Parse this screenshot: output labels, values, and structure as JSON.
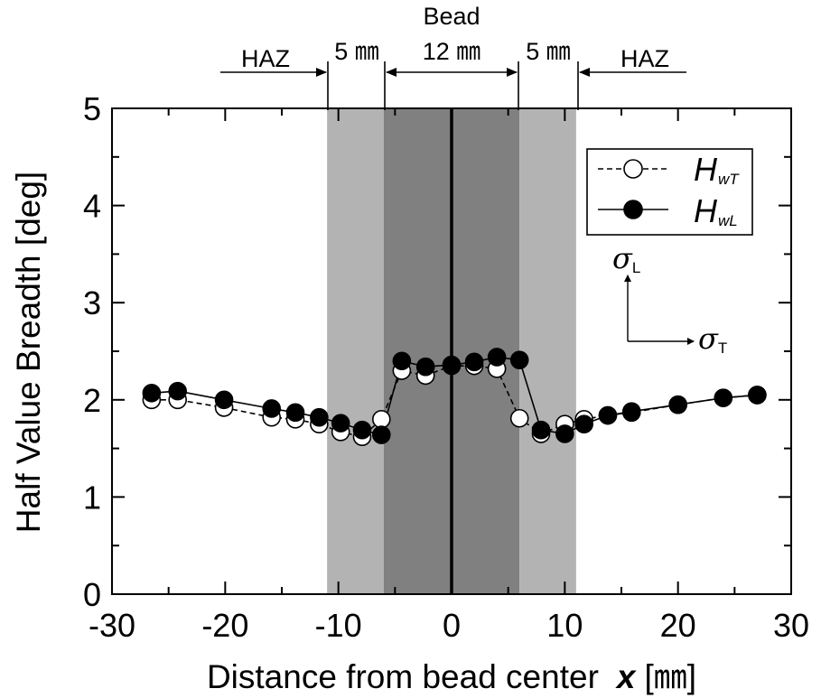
{
  "chart_data": {
    "type": "line",
    "xlabel_text": "Distance from bead center",
    "xlabel_var": "x",
    "xlabel_unit": "[㎜]",
    "ylabel": "Half Value Breadth [deg]",
    "xlim": [
      -30,
      30
    ],
    "ylim": [
      0,
      5
    ],
    "xticks": [
      -30,
      -20,
      -10,
      0,
      10,
      20,
      30
    ],
    "yticks": [
      0,
      1,
      2,
      3,
      4,
      5
    ],
    "grid": false,
    "legend_position": "top-right",
    "regions": [
      {
        "from": -11,
        "to": -6,
        "color": "#b3b3b3"
      },
      {
        "from": -6,
        "to": 6,
        "color": "#808080"
      },
      {
        "from": 6,
        "to": 11,
        "color": "#b3b3b3"
      }
    ],
    "center_line_x": 0,
    "top_labels": {
      "haz_left": "HAZ",
      "haz_right": "HAZ",
      "left_5mm": "5 ㎜",
      "right_5mm": "5 ㎜",
      "bead": "Bead",
      "bead_width": "12 ㎜"
    },
    "series": [
      {
        "name_main": "H",
        "name_sub": "wT",
        "marker": "open-circle",
        "linestyle": "dashed",
        "x": [
          -26.5,
          -24.2,
          -20.1,
          -15.9,
          -13.8,
          -11.7,
          -9.8,
          -7.9,
          -6.2,
          -4.4,
          -2.3,
          0.0,
          2.0,
          4.0,
          6.0,
          7.9,
          10.0,
          11.7,
          13.8,
          15.9,
          20.0,
          24.0,
          27.0
        ],
        "values": [
          2.0,
          2.0,
          1.92,
          1.82,
          1.8,
          1.75,
          1.67,
          1.62,
          1.8,
          2.3,
          2.25,
          2.35,
          2.35,
          2.32,
          1.81,
          1.65,
          1.75,
          1.8,
          1.84,
          1.87,
          1.95,
          2.02,
          2.05
        ]
      },
      {
        "name_main": "H",
        "name_sub": "wL",
        "marker": "filled-circle",
        "linestyle": "solid",
        "x": [
          -26.5,
          -24.2,
          -20.1,
          -15.9,
          -13.8,
          -11.7,
          -9.8,
          -7.9,
          -6.2,
          -4.4,
          -2.3,
          0.0,
          2.0,
          4.0,
          6.0,
          7.9,
          10.0,
          11.7,
          13.8,
          15.9,
          20.0,
          24.0,
          27.0
        ],
        "values": [
          2.07,
          2.09,
          2.0,
          1.91,
          1.87,
          1.82,
          1.76,
          1.69,
          1.64,
          2.4,
          2.34,
          2.36,
          2.39,
          2.44,
          2.41,
          1.69,
          1.65,
          1.75,
          1.84,
          1.88,
          1.95,
          2.02,
          2.05
        ]
      }
    ],
    "stress_axes": {
      "vertical": {
        "symbol": "σ",
        "sub": "L"
      },
      "horizontal": {
        "symbol": "σ",
        "sub": "T"
      }
    }
  }
}
